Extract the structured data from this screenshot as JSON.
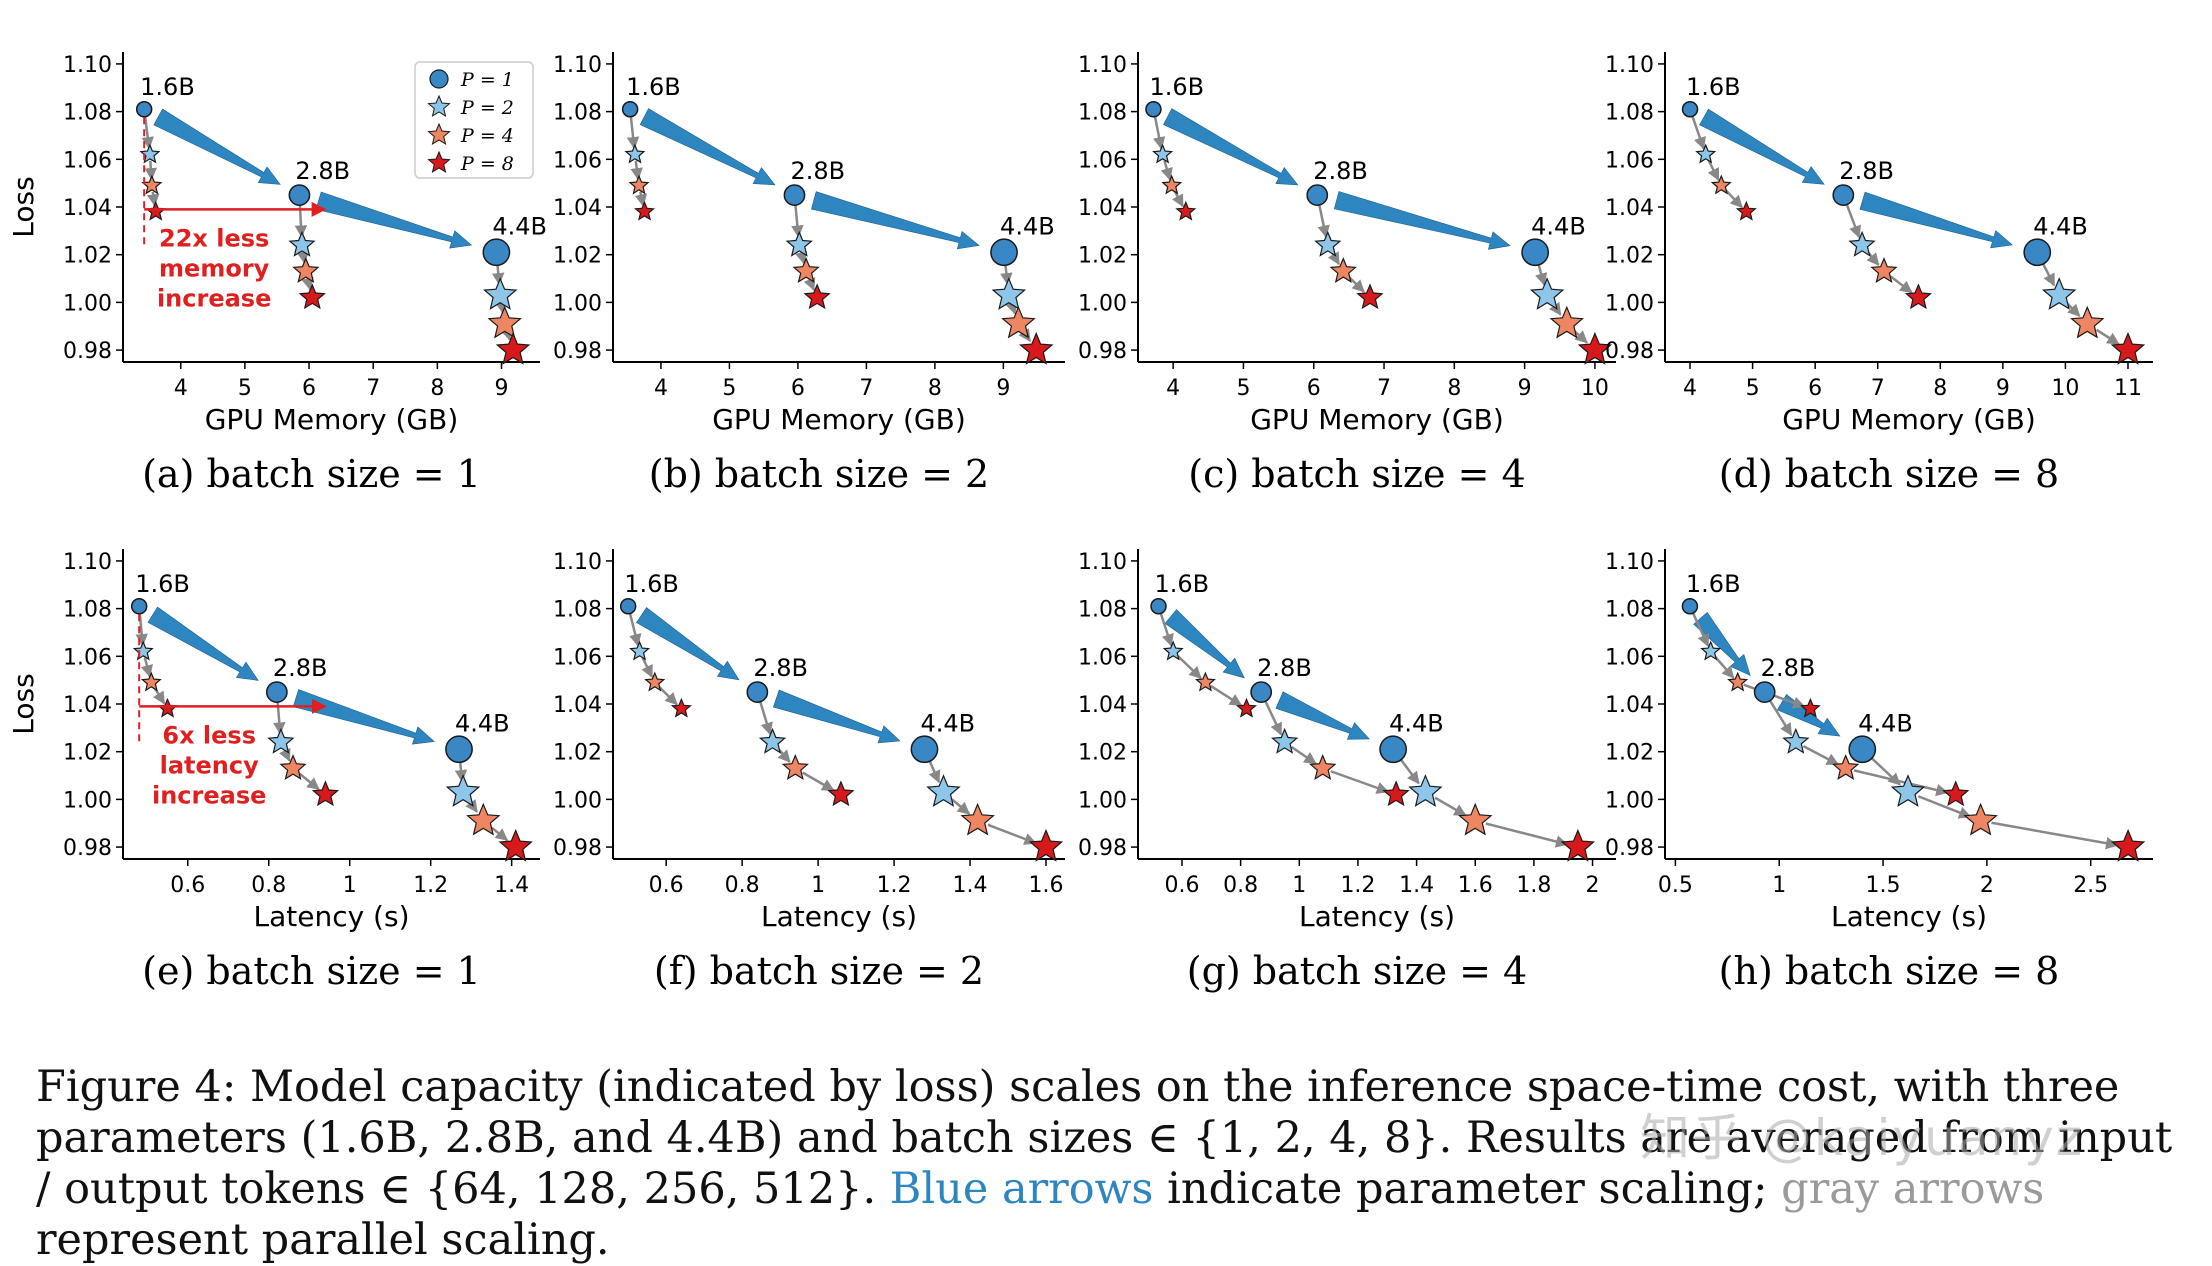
{
  "chart_data": [
    {
      "type": "scatter",
      "subcaption": "(a) batch size = 1",
      "xlabel": "GPU Memory (GB)",
      "ylabel": "Loss",
      "xlim": [
        3.1,
        9.6
      ],
      "ylim": [
        0.975,
        1.105
      ],
      "xticks": [
        4,
        5,
        6,
        7,
        8,
        9
      ],
      "yticks": [
        0.98,
        1.0,
        1.02,
        1.04,
        1.06,
        1.08,
        1.1
      ],
      "legend": {
        "position": "top-right",
        "entries": [
          "P = 1",
          "P = 2",
          "P = 4",
          "P = 8"
        ]
      },
      "annotation": {
        "lines": [
          "22x less",
          "memory",
          "increase"
        ],
        "y": 1.039,
        "x_from": 3.43,
        "x_to": 6.25
      },
      "series": [
        {
          "name": "1.6B",
          "points": [
            [
              3.43,
              1.081
            ],
            [
              3.52,
              1.062
            ],
            [
              3.55,
              1.049
            ],
            [
              3.61,
              1.038
            ]
          ]
        },
        {
          "name": "2.8B",
          "points": [
            [
              5.85,
              1.045
            ],
            [
              5.89,
              1.024
            ],
            [
              5.95,
              1.013
            ],
            [
              6.05,
              1.002
            ]
          ]
        },
        {
          "name": "4.4B",
          "points": [
            [
              8.92,
              1.021
            ],
            [
              8.98,
              1.003
            ],
            [
              9.05,
              0.991
            ],
            [
              9.18,
              0.98
            ]
          ]
        }
      ]
    },
    {
      "type": "scatter",
      "subcaption": "(b) batch size = 2",
      "xlabel": "GPU Memory (GB)",
      "ylabel": "",
      "xlim": [
        3.3,
        9.9
      ],
      "ylim": [
        0.975,
        1.105
      ],
      "xticks": [
        4,
        5,
        6,
        7,
        8,
        9
      ],
      "yticks": [
        0.98,
        1.0,
        1.02,
        1.04,
        1.06,
        1.08,
        1.1
      ],
      "series": [
        {
          "name": "1.6B",
          "points": [
            [
              3.55,
              1.081
            ],
            [
              3.62,
              1.062
            ],
            [
              3.68,
              1.049
            ],
            [
              3.76,
              1.038
            ]
          ]
        },
        {
          "name": "2.8B",
          "points": [
            [
              5.95,
              1.045
            ],
            [
              6.02,
              1.024
            ],
            [
              6.12,
              1.013
            ],
            [
              6.28,
              1.002
            ]
          ]
        },
        {
          "name": "4.4B",
          "points": [
            [
              9.01,
              1.021
            ],
            [
              9.08,
              1.003
            ],
            [
              9.22,
              0.991
            ],
            [
              9.48,
              0.98
            ]
          ]
        }
      ]
    },
    {
      "type": "scatter",
      "subcaption": "(c) batch size = 4",
      "xlabel": "GPU Memory (GB)",
      "ylabel": "",
      "xlim": [
        3.5,
        10.3
      ],
      "ylim": [
        0.975,
        1.105
      ],
      "xticks": [
        4,
        5,
        6,
        7,
        8,
        9,
        10
      ],
      "yticks": [
        0.98,
        1.0,
        1.02,
        1.04,
        1.06,
        1.08,
        1.1
      ],
      "series": [
        {
          "name": "1.6B",
          "points": [
            [
              3.72,
              1.081
            ],
            [
              3.85,
              1.062
            ],
            [
              3.98,
              1.049
            ],
            [
              4.18,
              1.038
            ]
          ]
        },
        {
          "name": "2.8B",
          "points": [
            [
              6.05,
              1.045
            ],
            [
              6.2,
              1.024
            ],
            [
              6.42,
              1.013
            ],
            [
              6.8,
              1.002
            ]
          ]
        },
        {
          "name": "4.4B",
          "points": [
            [
              9.15,
              1.021
            ],
            [
              9.32,
              1.003
            ],
            [
              9.6,
              0.991
            ],
            [
              10.0,
              0.98
            ]
          ]
        }
      ]
    },
    {
      "type": "scatter",
      "subcaption": "(d) batch size = 8",
      "xlabel": "GPU Memory (GB)",
      "ylabel": "",
      "xlim": [
        3.6,
        11.4
      ],
      "ylim": [
        0.975,
        1.105
      ],
      "xticks": [
        4,
        5,
        6,
        7,
        8,
        9,
        10,
        11
      ],
      "yticks": [
        0.98,
        1.0,
        1.02,
        1.04,
        1.06,
        1.08,
        1.1
      ],
      "series": [
        {
          "name": "1.6B",
          "points": [
            [
              4.0,
              1.081
            ],
            [
              4.25,
              1.062
            ],
            [
              4.5,
              1.049
            ],
            [
              4.9,
              1.038
            ]
          ]
        },
        {
          "name": "2.8B",
          "points": [
            [
              6.45,
              1.045
            ],
            [
              6.75,
              1.024
            ],
            [
              7.1,
              1.013
            ],
            [
              7.65,
              1.002
            ]
          ]
        },
        {
          "name": "4.4B",
          "points": [
            [
              9.55,
              1.021
            ],
            [
              9.9,
              1.003
            ],
            [
              10.35,
              0.991
            ],
            [
              11.0,
              0.98
            ]
          ]
        }
      ]
    },
    {
      "type": "scatter",
      "subcaption": "(e) batch size = 1",
      "xlabel": "Latency (s)",
      "ylabel": "Loss",
      "xlim": [
        0.44,
        1.47
      ],
      "ylim": [
        0.975,
        1.105
      ],
      "xticks": [
        0.6,
        0.8,
        1.0,
        1.2,
        1.4
      ],
      "yticks": [
        0.98,
        1.0,
        1.02,
        1.04,
        1.06,
        1.08,
        1.1
      ],
      "annotation": {
        "lines": [
          "6x less",
          "latency",
          "increase"
        ],
        "y": 1.039,
        "x_from": 0.48,
        "x_to": 0.94
      },
      "series": [
        {
          "name": "1.6B",
          "points": [
            [
              0.48,
              1.081
            ],
            [
              0.49,
              1.062
            ],
            [
              0.51,
              1.049
            ],
            [
              0.55,
              1.038
            ]
          ]
        },
        {
          "name": "2.8B",
          "points": [
            [
              0.82,
              1.045
            ],
            [
              0.83,
              1.024
            ],
            [
              0.86,
              1.013
            ],
            [
              0.94,
              1.002
            ]
          ]
        },
        {
          "name": "4.4B",
          "points": [
            [
              1.27,
              1.021
            ],
            [
              1.28,
              1.003
            ],
            [
              1.33,
              0.991
            ],
            [
              1.41,
              0.98
            ]
          ]
        }
      ]
    },
    {
      "type": "scatter",
      "subcaption": "(f) batch size = 2",
      "xlabel": "Latency (s)",
      "ylabel": "",
      "xlim": [
        0.46,
        1.65
      ],
      "ylim": [
        0.975,
        1.105
      ],
      "xticks": [
        0.6,
        0.8,
        1.0,
        1.2,
        1.4,
        1.6
      ],
      "yticks": [
        0.98,
        1.0,
        1.02,
        1.04,
        1.06,
        1.08,
        1.1
      ],
      "series": [
        {
          "name": "1.6B",
          "points": [
            [
              0.5,
              1.081
            ],
            [
              0.53,
              1.062
            ],
            [
              0.57,
              1.049
            ],
            [
              0.64,
              1.038
            ]
          ]
        },
        {
          "name": "2.8B",
          "points": [
            [
              0.84,
              1.045
            ],
            [
              0.88,
              1.024
            ],
            [
              0.94,
              1.013
            ],
            [
              1.06,
              1.002
            ]
          ]
        },
        {
          "name": "4.4B",
          "points": [
            [
              1.28,
              1.021
            ],
            [
              1.33,
              1.003
            ],
            [
              1.42,
              0.991
            ],
            [
              1.6,
              0.98
            ]
          ]
        }
      ]
    },
    {
      "type": "scatter",
      "subcaption": "(g) batch size = 4",
      "xlabel": "Latency (s)",
      "ylabel": "",
      "xlim": [
        0.45,
        2.08
      ],
      "ylim": [
        0.975,
        1.105
      ],
      "xticks": [
        0.6,
        0.8,
        1.0,
        1.2,
        1.4,
        1.6,
        1.8,
        2.0
      ],
      "yticks": [
        0.98,
        1.0,
        1.02,
        1.04,
        1.06,
        1.08,
        1.1
      ],
      "series": [
        {
          "name": "1.6B",
          "points": [
            [
              0.52,
              1.081
            ],
            [
              0.57,
              1.062
            ],
            [
              0.68,
              1.049
            ],
            [
              0.82,
              1.038
            ]
          ]
        },
        {
          "name": "2.8B",
          "points": [
            [
              0.87,
              1.045
            ],
            [
              0.95,
              1.024
            ],
            [
              1.08,
              1.013
            ],
            [
              1.33,
              1.002
            ]
          ]
        },
        {
          "name": "4.4B",
          "points": [
            [
              1.32,
              1.021
            ],
            [
              1.43,
              1.003
            ],
            [
              1.6,
              0.991
            ],
            [
              1.95,
              0.98
            ]
          ]
        }
      ]
    },
    {
      "type": "scatter",
      "subcaption": "(h) batch size = 8",
      "xlabel": "Latency (s)",
      "ylabel": "",
      "xlim": [
        0.45,
        2.8
      ],
      "ylim": [
        0.975,
        1.105
      ],
      "xticks": [
        0.5,
        1.0,
        1.5,
        2.0,
        2.5
      ],
      "yticks": [
        0.98,
        1.0,
        1.02,
        1.04,
        1.06,
        1.08,
        1.1
      ],
      "series": [
        {
          "name": "1.6B",
          "points": [
            [
              0.57,
              1.081
            ],
            [
              0.67,
              1.062
            ],
            [
              0.8,
              1.049
            ],
            [
              1.15,
              1.038
            ]
          ]
        },
        {
          "name": "2.8B",
          "points": [
            [
              0.93,
              1.045
            ],
            [
              1.08,
              1.024
            ],
            [
              1.32,
              1.013
            ],
            [
              1.85,
              1.002
            ]
          ]
        },
        {
          "name": "4.4B",
          "points": [
            [
              1.4,
              1.021
            ],
            [
              1.62,
              1.003
            ],
            [
              1.97,
              0.991
            ],
            [
              2.68,
              0.98
            ]
          ]
        }
      ]
    }
  ],
  "marker_colors": [
    "#3a87c6",
    "#8ec6ea",
    "#ef8663",
    "#d7191c"
  ],
  "arrow_colors": {
    "parameter": "#2e86c1",
    "parallel": "#888888",
    "annotation": "#e02020"
  },
  "caption": {
    "part1": "Figure 4: Model capacity (indicated by loss) scales on the inference space-time cost, with three parameters (1.6B, 2.8B, and 4.4B) and batch sizes ∈ {1, 2, 4, 8}. Results are averaged from input / output tokens ∈ {64, 128, 256, 512}. ",
    "blue": "Blue arrows",
    "part2": " indicate parameter scaling; ",
    "gray": "gray arrows",
    "part3": " represent parallel scaling."
  },
  "watermark": "知乎 @kaiyuanyz"
}
